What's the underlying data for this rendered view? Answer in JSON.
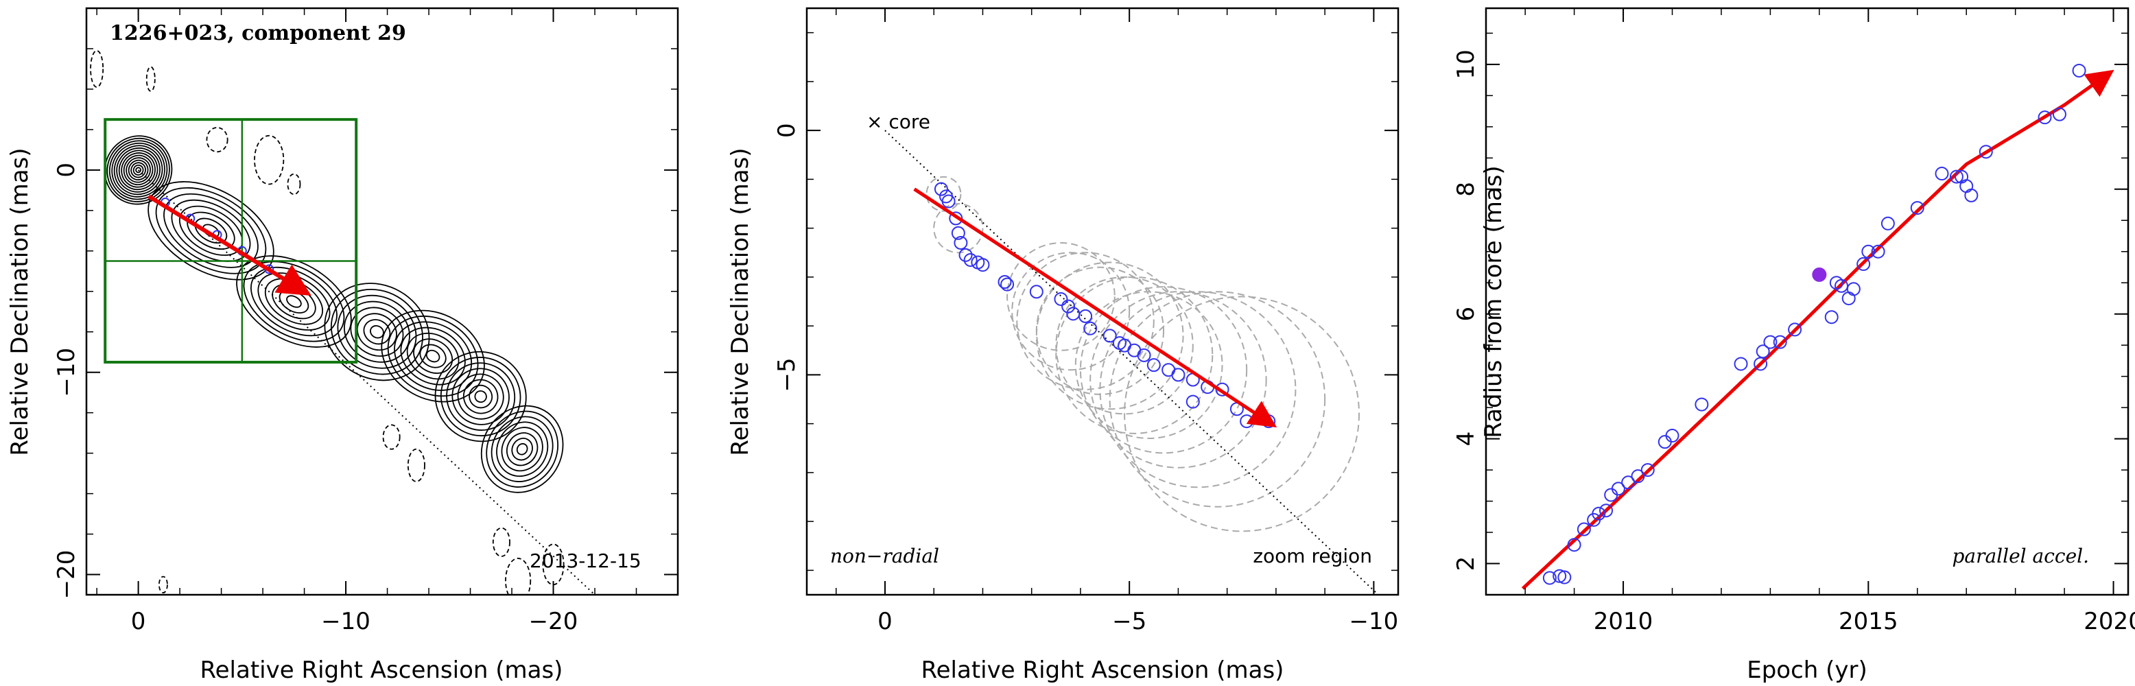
{
  "colors": {
    "arrow": "#ee0000",
    "markers": "#3333ee",
    "highlight": "#8a2be2",
    "box": "#117711",
    "contours": "#000000",
    "beams": "#aaaaaa"
  },
  "chart_data": [
    {
      "type": "contour",
      "title": "1226+023, component 29",
      "xlabel": "Relative Right Ascension (mas)",
      "ylabel": "Relative Declination (mas)",
      "xlim": [
        2.5,
        -26
      ],
      "ylim": [
        -21,
        8
      ],
      "xticks": [
        0,
        -10,
        -20
      ],
      "xtick_labels": [
        "0",
        "−10",
        "−20"
      ],
      "yticks": [
        0,
        -10,
        -20
      ],
      "ytick_labels": [
        "0",
        "−10",
        "−20"
      ],
      "date_label": "2013-12-15",
      "zoom_box": {
        "x_range": [
          1.6,
          -10.5
        ],
        "y_range": [
          2.5,
          -9.5
        ],
        "inner_x": -5,
        "inner_y": -4.5
      },
      "jet_direction_line": [
        [
          0,
          0
        ],
        [
          -22,
          -21
        ]
      ],
      "arrow": {
        "from": [
          -0.5,
          -1.3
        ],
        "to": [
          -8,
          -6
        ]
      },
      "component_positions": [
        [
          -1.3,
          -1.6
        ],
        [
          -2.5,
          -2.4
        ],
        [
          -3.8,
          -3.2
        ],
        [
          -5.0,
          -4.0
        ],
        [
          -6.3,
          -4.9
        ],
        [
          -7.2,
          -5.5
        ]
      ],
      "jet_emission_blobs": [
        {
          "x": 0,
          "y": 0,
          "rx": 1.6,
          "ry": 1.7
        },
        {
          "x": -3.5,
          "y": -3.0,
          "rx": 3.3,
          "ry": 2.0
        },
        {
          "x": -7.5,
          "y": -6.5,
          "rx": 3.0,
          "ry": 1.9
        },
        {
          "x": -11.5,
          "y": -8.0,
          "rx": 2.6,
          "ry": 2.3
        },
        {
          "x": -14.2,
          "y": -9.2,
          "rx": 2.6,
          "ry": 2.1
        },
        {
          "x": -16.5,
          "y": -11.2,
          "rx": 2.2,
          "ry": 2.2
        },
        {
          "x": -18.5,
          "y": -13.8,
          "rx": 1.9,
          "ry": 2.2
        }
      ],
      "negative_contours": [
        {
          "x": 2,
          "y": 5,
          "rx": 0.3,
          "ry": 0.9
        },
        {
          "x": -0.6,
          "y": 4.5,
          "rx": 0.2,
          "ry": 0.6
        },
        {
          "x": -3.8,
          "y": 1.5,
          "rx": 0.5,
          "ry": 0.6
        },
        {
          "x": -6.3,
          "y": 0.5,
          "rx": 0.7,
          "ry": 1.2
        },
        {
          "x": -7.5,
          "y": -0.7,
          "rx": 0.3,
          "ry": 0.5
        },
        {
          "x": -12.2,
          "y": -13.2,
          "rx": 0.4,
          "ry": 0.6
        },
        {
          "x": -13.4,
          "y": -14.6,
          "rx": 0.4,
          "ry": 0.8
        },
        {
          "x": -17.5,
          "y": -18.4,
          "rx": 0.4,
          "ry": 0.7
        },
        {
          "x": -18.3,
          "y": -20.3,
          "rx": 0.6,
          "ry": 1.1
        },
        {
          "x": -20,
          "y": -19.5,
          "rx": 0.5,
          "ry": 1.0
        },
        {
          "x": -1.2,
          "y": -20.5,
          "rx": 0.2,
          "ry": 0.4
        }
      ]
    },
    {
      "type": "scatter",
      "xlabel": "Relative Right Ascension (mas)",
      "ylabel": "Relative Declination (mas)",
      "xlim": [
        1.6,
        -10.5
      ],
      "ylim": [
        -9.5,
        2.5
      ],
      "xticks": [
        0,
        -5,
        -10
      ],
      "xtick_labels": [
        "0",
        "−5",
        "−10"
      ],
      "yticks": [
        0,
        -5
      ],
      "ytick_labels": [
        "0",
        "−5"
      ],
      "core_label": "× core",
      "left_label": "non−radial",
      "right_label": "zoom region",
      "diagonal_line": [
        [
          0,
          0
        ],
        [
          -10.2,
          -9.6
        ]
      ],
      "arrow": {
        "from": [
          -0.6,
          -1.2
        ],
        "to": [
          -7.9,
          -6.0
        ]
      },
      "points": [
        [
          -1.15,
          -1.2
        ],
        [
          -1.25,
          -1.35
        ],
        [
          -1.3,
          -1.45
        ],
        [
          -1.45,
          -1.8
        ],
        [
          -1.5,
          -2.1
        ],
        [
          -1.55,
          -2.3
        ],
        [
          -1.65,
          -2.55
        ],
        [
          -1.75,
          -2.65
        ],
        [
          -1.9,
          -2.7
        ],
        [
          -2.0,
          -2.75
        ],
        [
          -2.45,
          -3.1
        ],
        [
          -2.5,
          -3.15
        ],
        [
          -3.1,
          -3.3
        ],
        [
          -3.6,
          -3.45
        ],
        [
          -3.75,
          -3.6
        ],
        [
          -3.85,
          -3.75
        ],
        [
          -4.1,
          -3.8
        ],
        [
          -4.2,
          -4.05
        ],
        [
          -4.6,
          -4.2
        ],
        [
          -4.8,
          -4.35
        ],
        [
          -4.9,
          -4.4
        ],
        [
          -5.1,
          -4.5
        ],
        [
          -5.3,
          -4.6
        ],
        [
          -5.5,
          -4.8
        ],
        [
          -5.8,
          -4.9
        ],
        [
          -6.0,
          -5.0
        ],
        [
          -6.3,
          -5.1
        ],
        [
          -6.6,
          -5.25
        ],
        [
          -6.9,
          -5.3
        ],
        [
          -7.2,
          -5.7
        ],
        [
          -6.3,
          -5.55
        ],
        [
          -7.4,
          -5.95
        ],
        [
          -7.85,
          -5.95
        ]
      ],
      "beams": [
        {
          "x": -1.2,
          "y": -1.3,
          "r": 0.35
        },
        {
          "x": -1.5,
          "y": -2.0,
          "r": 0.5
        },
        {
          "x": -3.6,
          "y": -3.4,
          "r": 1.1
        },
        {
          "x": -3.8,
          "y": -3.7,
          "r": 1.2
        },
        {
          "x": -4.1,
          "y": -3.9,
          "r": 1.4
        },
        {
          "x": -4.4,
          "y": -4.1,
          "r": 1.3
        },
        {
          "x": -4.6,
          "y": -4.2,
          "r": 1.5
        },
        {
          "x": -4.9,
          "y": -4.4,
          "r": 1.4
        },
        {
          "x": -5.1,
          "y": -4.6,
          "r": 1.6
        },
        {
          "x": -5.4,
          "y": -4.8,
          "r": 1.5
        },
        {
          "x": -5.7,
          "y": -4.9,
          "r": 1.7
        },
        {
          "x": -6.0,
          "y": -5.1,
          "r": 1.8
        },
        {
          "x": -6.4,
          "y": -5.3,
          "r": 2.0
        },
        {
          "x": -6.8,
          "y": -5.5,
          "r": 2.2
        },
        {
          "x": -7.3,
          "y": -5.8,
          "r": 2.4
        }
      ]
    },
    {
      "type": "scatter",
      "xlabel": "Epoch (yr)",
      "ylabel": "Radius from core (mas)",
      "xlim": [
        2007.2,
        2020.3
      ],
      "ylim": [
        1.5,
        10.9
      ],
      "xticks": [
        2010,
        2015,
        2020
      ],
      "xtick_labels": [
        "2010",
        "2015",
        "2020"
      ],
      "yticks": [
        2,
        4,
        6,
        8,
        10
      ],
      "ytick_labels": [
        "2",
        "4",
        "6",
        "8",
        "10"
      ],
      "annotation": "parallel accel.",
      "highlight_point": [
        2014.0,
        6.63
      ],
      "fit_curve": {
        "x": [
          2007.95,
          2009,
          2011,
          2013,
          2015,
          2017,
          2019,
          2019.9
        ],
        "y": [
          1.6,
          2.37,
          3.85,
          5.35,
          6.9,
          8.4,
          9.35,
          9.85
        ]
      },
      "points": [
        [
          2008.5,
          1.77
        ],
        [
          2008.7,
          1.8
        ],
        [
          2008.8,
          1.78
        ],
        [
          2009.0,
          2.3
        ],
        [
          2009.2,
          2.55
        ],
        [
          2009.4,
          2.7
        ],
        [
          2009.5,
          2.8
        ],
        [
          2009.65,
          2.85
        ],
        [
          2009.75,
          3.1
        ],
        [
          2009.9,
          3.2
        ],
        [
          2010.1,
          3.3
        ],
        [
          2010.3,
          3.4
        ],
        [
          2010.5,
          3.5
        ],
        [
          2010.85,
          3.95
        ],
        [
          2011.0,
          4.05
        ],
        [
          2011.6,
          4.55
        ],
        [
          2012.4,
          5.2
        ],
        [
          2012.8,
          5.2
        ],
        [
          2012.85,
          5.4
        ],
        [
          2013.0,
          5.55
        ],
        [
          2013.2,
          5.55
        ],
        [
          2013.5,
          5.75
        ],
        [
          2014.25,
          5.95
        ],
        [
          2014.35,
          6.5
        ],
        [
          2014.45,
          6.45
        ],
        [
          2014.6,
          6.25
        ],
        [
          2014.7,
          6.4
        ],
        [
          2014.9,
          6.8
        ],
        [
          2015.0,
          7.0
        ],
        [
          2015.2,
          7.0
        ],
        [
          2015.4,
          7.45
        ],
        [
          2016.0,
          7.7
        ],
        [
          2016.5,
          8.25
        ],
        [
          2016.8,
          8.2
        ],
        [
          2016.9,
          8.2
        ],
        [
          2017.0,
          8.05
        ],
        [
          2017.1,
          7.9
        ],
        [
          2017.4,
          8.6
        ],
        [
          2018.6,
          9.15
        ],
        [
          2018.9,
          9.2
        ],
        [
          2019.3,
          9.9
        ]
      ]
    }
  ]
}
